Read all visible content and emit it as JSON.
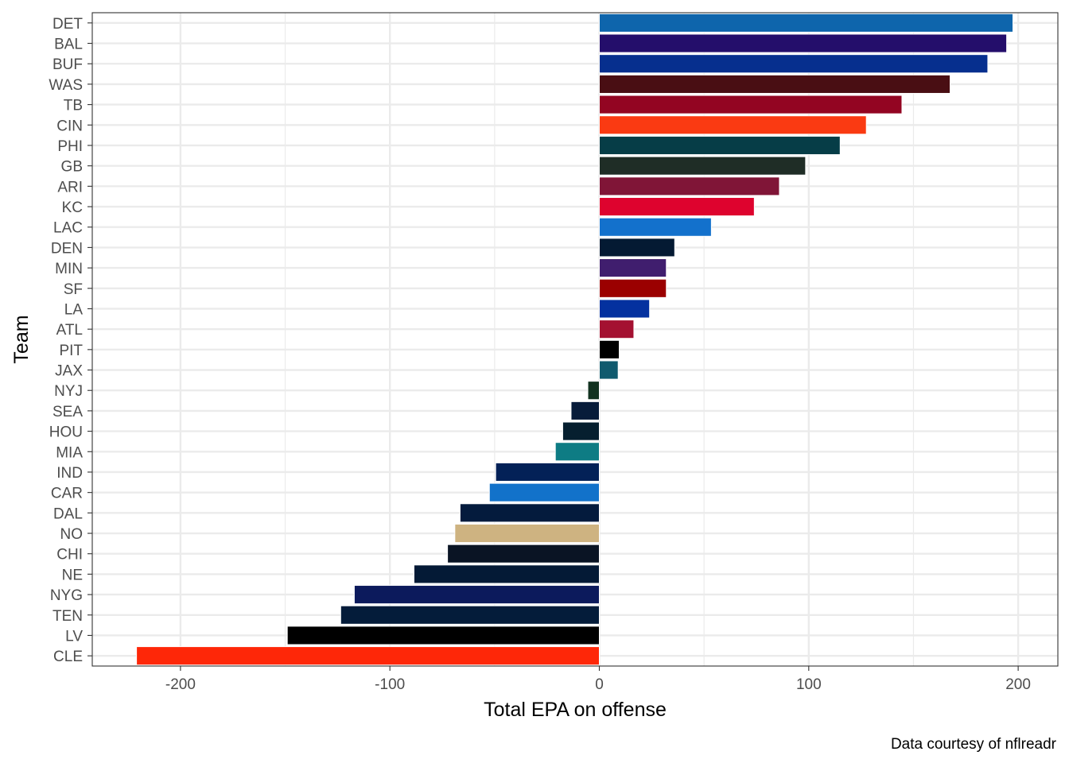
{
  "chart_data": {
    "type": "bar",
    "orientation": "horizontal",
    "xlabel": "Total EPA on offense",
    "ylabel": "Team",
    "caption": "Data courtesy of nflreadr",
    "xlim": [
      -240,
      222
    ],
    "xticks": [
      -200,
      -100,
      0,
      100,
      200
    ],
    "xtick_labels": [
      "-200",
      "-100",
      "0",
      "100",
      "200"
    ],
    "grid": true,
    "categories": [
      "DET",
      "BAL",
      "BUF",
      "WAS",
      "TB",
      "CIN",
      "PHI",
      "GB",
      "ARI",
      "KC",
      "LAC",
      "DEN",
      "MIN",
      "SF",
      "LA",
      "ATL",
      "PIT",
      "JAX",
      "NYJ",
      "SEA",
      "HOU",
      "MIA",
      "IND",
      "CAR",
      "DAL",
      "NO",
      "CHI",
      "NE",
      "NYG",
      "TEN",
      "LV",
      "CLE"
    ],
    "values": [
      197.5,
      194.5,
      185.5,
      167.5,
      144.5,
      127.5,
      115,
      98.5,
      86,
      74,
      53.5,
      36,
      32,
      32,
      24,
      16.5,
      9.5,
      9,
      -5.5,
      -13.5,
      -17.5,
      -21,
      -49.5,
      -52.5,
      -66.5,
      -69,
      -72.5,
      -88.5,
      -117,
      -123.5,
      -149,
      -221
    ],
    "colors": [
      "#0E65AC",
      "#240E6B",
      "#062F8E",
      "#490E13",
      "#930522",
      "#FA3A12",
      "#063D47",
      "#1F2D26",
      "#801537",
      "#DE032E",
      "#1371CC",
      "#041A33",
      "#401E6E",
      "#9B0000",
      "#04319F",
      "#A41131",
      "#000000",
      "#0F5A6E",
      "#123220",
      "#071C3A",
      "#061F2F",
      "#0E7C84",
      "#032157",
      "#1272CA",
      "#041B3D",
      "#CEB381",
      "#0A1424",
      "#041A36",
      "#0C1A5C",
      "#041C3A",
      "#000000",
      "#FE2708"
    ]
  }
}
